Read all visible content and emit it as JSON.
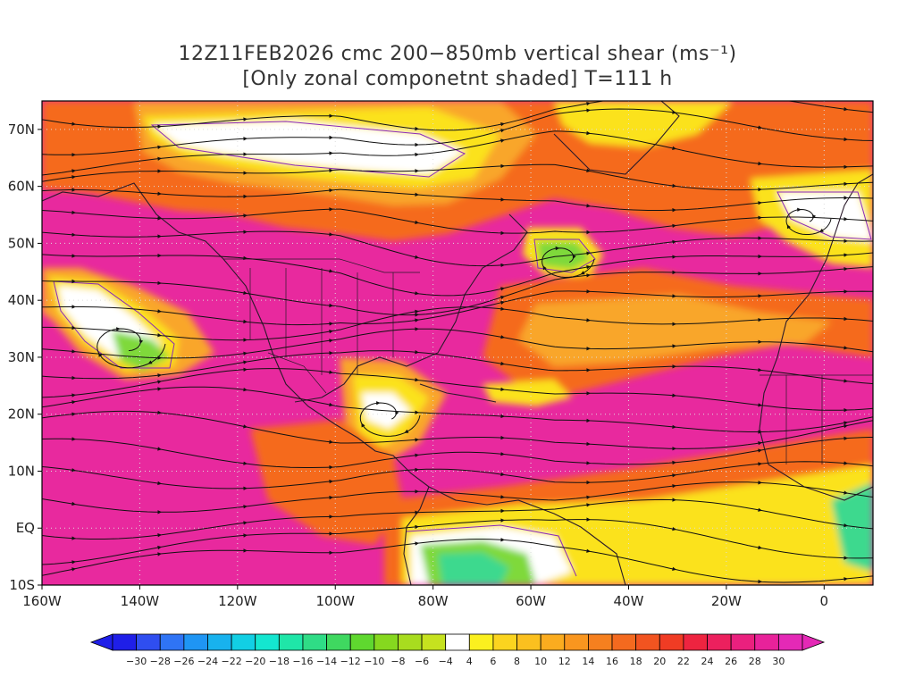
{
  "title": {
    "line1": "12Z11FEB2026 cmc 200−850mb vertical shear (ms⁻¹)",
    "line2": "[Only zonal componetnt shaded] T=111 h"
  },
  "map": {
    "type": "shaded-field-with-streamlines",
    "lon_range": [
      -160,
      10
    ],
    "lat_range": [
      -10,
      75
    ],
    "lat_ticks": [
      {
        "lat": 70,
        "label": "70N"
      },
      {
        "lat": 60,
        "label": "60N"
      },
      {
        "lat": 50,
        "label": "50N"
      },
      {
        "lat": 40,
        "label": "40N"
      },
      {
        "lat": 30,
        "label": "30N"
      },
      {
        "lat": 20,
        "label": "20N"
      },
      {
        "lat": 10,
        "label": "10N"
      },
      {
        "lat": 0,
        "label": "EQ"
      },
      {
        "lat": -10,
        "label": "10S"
      }
    ],
    "lon_ticks": [
      {
        "lon": -160,
        "label": "160W"
      },
      {
        "lon": -140,
        "label": "140W"
      },
      {
        "lon": -120,
        "label": "120W"
      },
      {
        "lon": -100,
        "label": "100W"
      },
      {
        "lon": -80,
        "label": "80W"
      },
      {
        "lon": -60,
        "label": "60W"
      },
      {
        "lon": -40,
        "label": "40W"
      },
      {
        "lon": -20,
        "label": "20W"
      },
      {
        "lon": 0,
        "label": "0"
      }
    ],
    "grid": "dotted",
    "colors": {
      "magenta": "#e8299e",
      "red": "#f2254a",
      "orange": "#f56a1a",
      "orange_light": "#f9a62a",
      "yellow": "#fbe21d",
      "white": "#ffffff",
      "green": "#7fd93a",
      "cyan_green": "#3ed98e",
      "coast": "#2a1a2a",
      "contour": "#8a2ab8",
      "streamline": "#111111"
    }
  },
  "colorbar": {
    "labels": [
      "−30",
      "−28",
      "−26",
      "−24",
      "−22",
      "−20",
      "−18",
      "−16",
      "−14",
      "−12",
      "−10",
      "−8",
      "−6",
      "−4",
      "4",
      "6",
      "8",
      "10",
      "12",
      "14",
      "16",
      "18",
      "20",
      "22",
      "24",
      "26",
      "28",
      "30"
    ],
    "colors": [
      "#1f1fe8",
      "#2f4ef0",
      "#2f74f5",
      "#1f95f4",
      "#18b2ee",
      "#12cfe4",
      "#14e6d0",
      "#1fe6a8",
      "#2fdc86",
      "#3fd860",
      "#5fd82f",
      "#86d81f",
      "#a8dc1f",
      "#c6e21f",
      "#ffffff",
      "#fbf01f",
      "#fbd41f",
      "#fbc01f",
      "#fbac1f",
      "#f9961f",
      "#f6801f",
      "#f46a1f",
      "#f25420",
      "#f03c24",
      "#ee2440",
      "#ec205e",
      "#ea207e",
      "#e8229a",
      "#e429b6"
    ]
  }
}
